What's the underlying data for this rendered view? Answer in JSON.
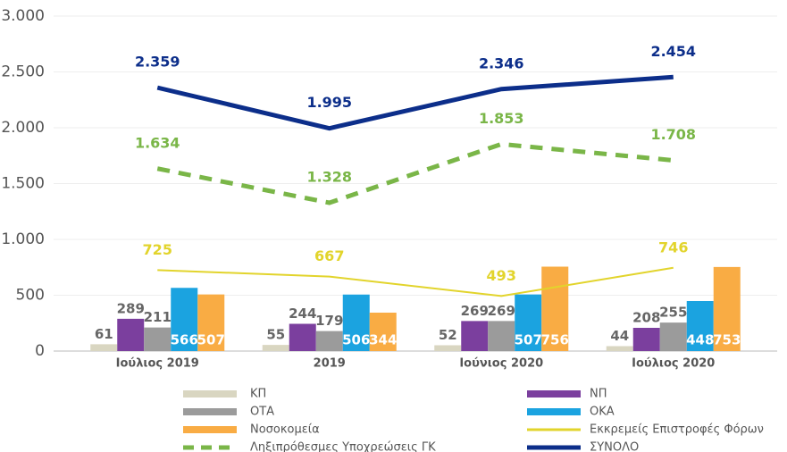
{
  "chart_data": {
    "type": "bar",
    "categories": [
      "Ιούλιος 2019",
      "2019",
      "Ιούνιος 2020",
      "Ιούλιος 2020"
    ],
    "ylim": [
      0,
      3000
    ],
    "yticks": [
      0,
      500,
      {
        "value": 1000,
        "label": "1.000"
      },
      {
        "value": 1500,
        "label": "1.500"
      },
      {
        "value": 2000,
        "label": "2.000"
      },
      {
        "value": 2500,
        "label": "2.500"
      },
      {
        "value": 3000,
        "label": "3.000"
      }
    ],
    "grid": true,
    "series": [
      {
        "name": "ΚΠ",
        "type": "bar",
        "color": "#d9d6c1",
        "values": [
          61,
          55,
          52,
          44
        ]
      },
      {
        "name": "ΝΠ",
        "type": "bar",
        "color": "#7b3f9e",
        "values": [
          289,
          244,
          269,
          208
        ]
      },
      {
        "name": "ΟΤΑ",
        "type": "bar",
        "color": "#9b9b9b",
        "values": [
          211,
          179,
          269,
          255
        ]
      },
      {
        "name": "ΟΚΑ",
        "type": "bar",
        "color": "#1ba3e0",
        "values": [
          566,
          506,
          507,
          448
        ]
      },
      {
        "name": "Νοσοκομεία",
        "type": "bar",
        "color": "#f9ac44",
        "values": [
          507,
          344,
          756,
          753
        ]
      },
      {
        "name": "Εκκρεμείς Επιστροφές Φόρων",
        "type": "line",
        "color": "#e2d42c",
        "values": [
          725,
          667,
          493,
          746
        ]
      },
      {
        "name": "Ληξιπρόθεσμες Υποχρεώσεις ΓΚ",
        "type": "line",
        "dashed": true,
        "color": "#7ab648",
        "values": [
          1634,
          1328,
          1853,
          1708
        ],
        "value_labels": [
          "1.634",
          "1.328",
          "1.853",
          "1.708"
        ]
      },
      {
        "name": "ΣΥΝΟΛΟ",
        "type": "line",
        "color": "#0c2e8a",
        "values": [
          2359,
          1995,
          2346,
          2454
        ],
        "value_labels": [
          "2.359",
          "1.995",
          "2.346",
          "2.454"
        ]
      }
    ]
  }
}
